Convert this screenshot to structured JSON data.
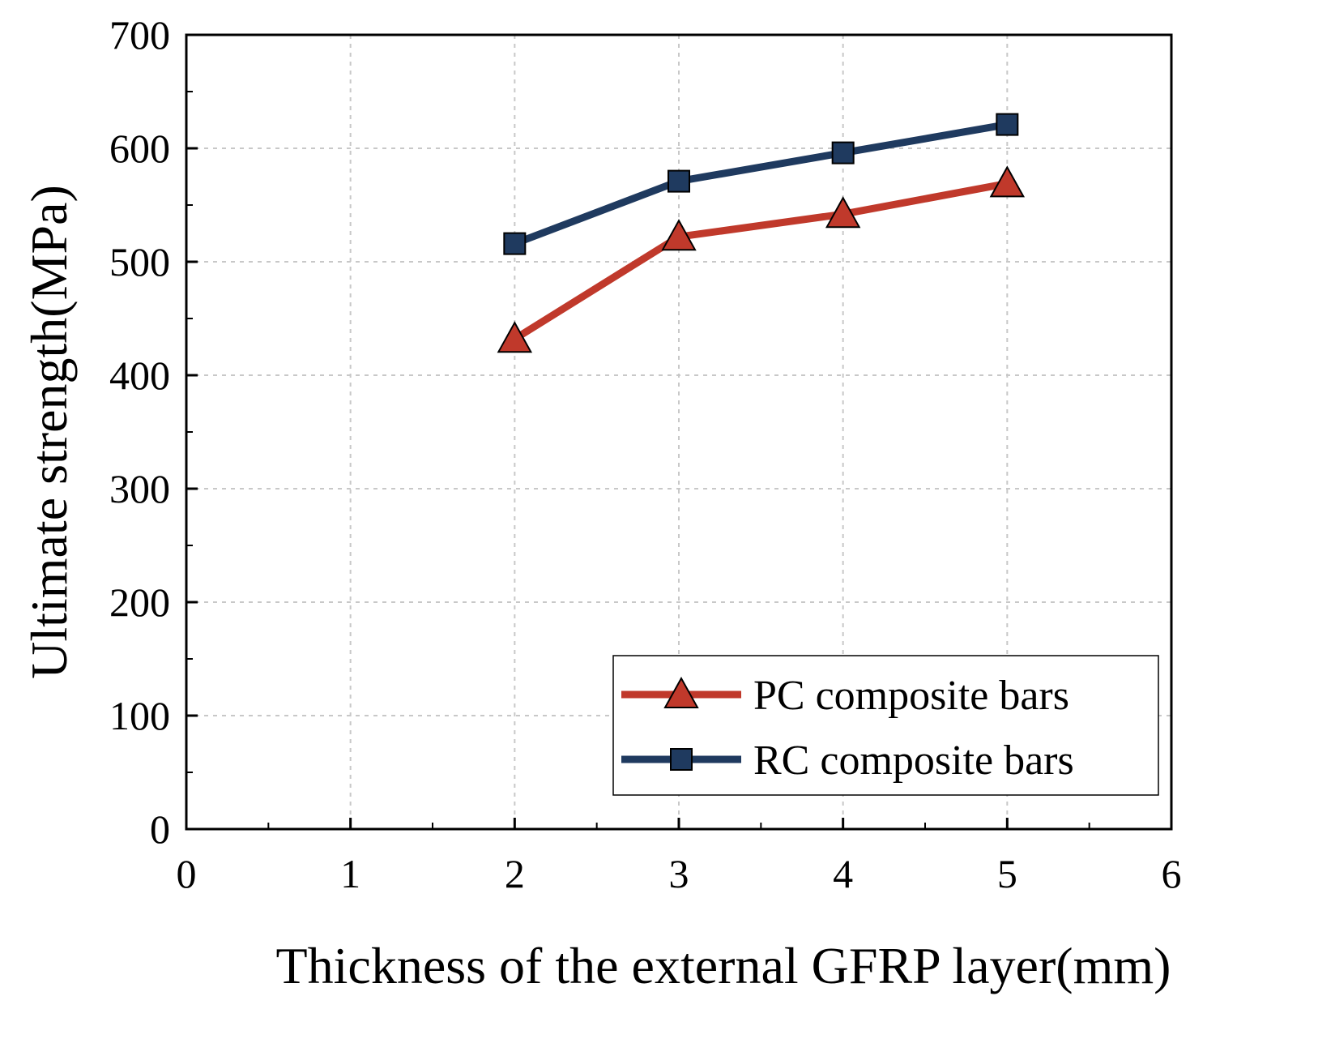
{
  "chart_data": {
    "type": "line",
    "title": "",
    "xlabel": "Thickness of the external GFRP layer(mm)",
    "ylabel": "Ultimate strength(MPa)",
    "xlim": [
      0,
      6
    ],
    "ylim": [
      0,
      700
    ],
    "x_ticks": [
      "0",
      "1",
      "2",
      "3",
      "4",
      "5",
      "6"
    ],
    "y_ticks": [
      "0",
      "100",
      "200",
      "300",
      "400",
      "500",
      "600",
      "700"
    ],
    "grid": true,
    "legend_position": "bottom-right",
    "series": [
      {
        "name": "PC composite bars",
        "color": "#c0392b",
        "marker": "triangle",
        "x": [
          2,
          3,
          4,
          5
        ],
        "values": [
          432,
          522,
          542,
          569
        ]
      },
      {
        "name": "RC composite bars",
        "color": "#1f3a5f",
        "marker": "square",
        "x": [
          2,
          3,
          4,
          5
        ],
        "values": [
          516,
          571,
          596,
          621
        ]
      }
    ]
  }
}
